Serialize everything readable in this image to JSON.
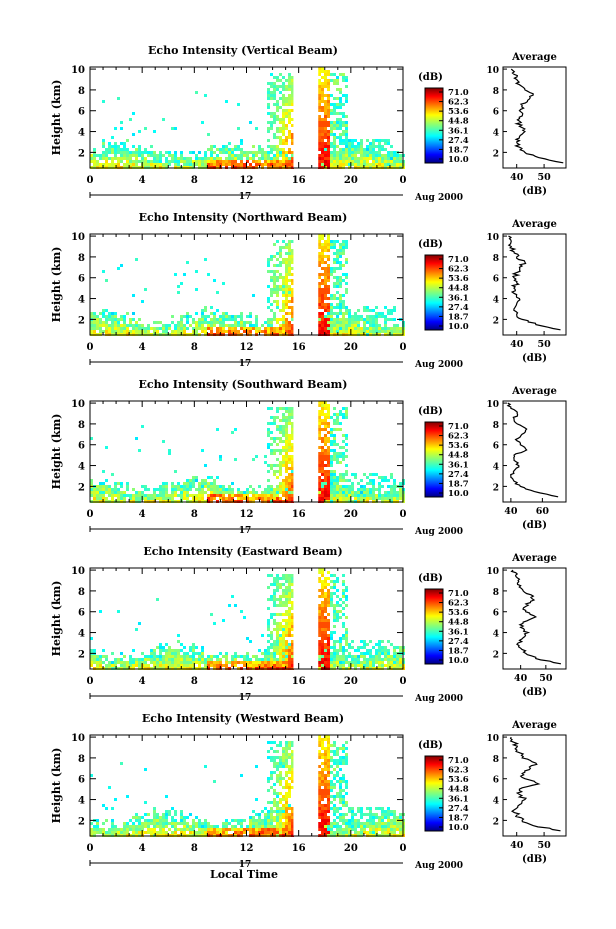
{
  "figure": {
    "date_label": "Aug 2000",
    "day_label": "17",
    "xlabel": "Local Time",
    "ylabel": "Height (km)",
    "colorbar_unit": "(dB)",
    "colorbar_ticks": [
      "71.0",
      "62.3",
      "53.6",
      "44.8",
      "36.1",
      "27.4",
      "18.7",
      "10.0"
    ],
    "average_title": "Average",
    "average_xlabel": "(dB)"
  },
  "chart_data": [
    {
      "type": "heatmap",
      "title": "Echo Intensity (Vertical Beam)",
      "xlabel": "Local Time",
      "ylabel": "Height (km)",
      "x_ticks": [
        "0",
        "4",
        "8",
        "12",
        "16",
        "20",
        "0"
      ],
      "y_ticks": [
        "2",
        "4",
        "6",
        "8",
        "10"
      ],
      "xlim": [
        0,
        24
      ],
      "ylim": [
        0.5,
        10.2
      ],
      "colorbar": {
        "unit": "(dB)",
        "range": [
          10.0,
          71.0
        ]
      },
      "gap_hours": [
        15.6,
        17.5
      ],
      "average_profile": {
        "title": "Average",
        "xlabel": "(dB)",
        "x_ticks": [
          "40",
          "50"
        ],
        "xlim": [
          35,
          58
        ],
        "heights": [
          1.0,
          1.5,
          2.0,
          2.5,
          3.0,
          3.5,
          4.0,
          4.5,
          5.0,
          5.5,
          6.0,
          6.5,
          7.0,
          7.5,
          8.0,
          8.5,
          9.0,
          9.5,
          10.0
        ],
        "values": [
          57,
          48,
          43,
          41,
          40,
          41,
          43,
          41,
          41,
          42,
          41,
          42,
          44,
          46,
          43,
          41,
          40,
          39,
          38
        ]
      }
    },
    {
      "type": "heatmap",
      "title": "Echo Intensity (Northward Beam)",
      "xlabel": "Local Time",
      "ylabel": "Height (km)",
      "x_ticks": [
        "0",
        "4",
        "8",
        "12",
        "16",
        "20",
        "0"
      ],
      "y_ticks": [
        "2",
        "4",
        "6",
        "8",
        "10"
      ],
      "xlim": [
        0,
        24
      ],
      "ylim": [
        0.5,
        10.2
      ],
      "colorbar": {
        "unit": "(dB)",
        "range": [
          10.0,
          71.0
        ]
      },
      "gap_hours": [
        15.6,
        17.5
      ],
      "average_profile": {
        "title": "Average",
        "xlabel": "(dB)",
        "x_ticks": [
          "40",
          "50"
        ],
        "xlim": [
          35,
          58
        ],
        "heights": [
          1.0,
          1.5,
          2.0,
          2.5,
          3.0,
          3.5,
          4.0,
          4.5,
          5.0,
          5.5,
          6.0,
          6.5,
          7.0,
          7.5,
          8.0,
          8.5,
          9.0,
          9.5,
          10.0
        ],
        "values": [
          56,
          47,
          42,
          40,
          39,
          40,
          41,
          39,
          39,
          40,
          39,
          40,
          41,
          43,
          40,
          39,
          38,
          38,
          37
        ]
      }
    },
    {
      "type": "heatmap",
      "title": "Echo Intensity (Southward Beam)",
      "xlabel": "Local Time",
      "ylabel": "Height (km)",
      "x_ticks": [
        "0",
        "4",
        "8",
        "12",
        "16",
        "20",
        "0"
      ],
      "y_ticks": [
        "2",
        "4",
        "6",
        "8",
        "10"
      ],
      "xlim": [
        0,
        24
      ],
      "ylim": [
        0.5,
        10.2
      ],
      "colorbar": {
        "unit": "(dB)",
        "range": [
          10.0,
          71.0
        ]
      },
      "gap_hours": [
        15.6,
        17.5
      ],
      "average_profile": {
        "title": "Average",
        "xlabel": "(dB)",
        "x_ticks": [
          "40",
          "60"
        ],
        "xlim": [
          35,
          75
        ],
        "heights": [
          1.0,
          1.5,
          2.0,
          2.5,
          3.0,
          3.5,
          4.0,
          4.5,
          5.0,
          5.5,
          6.0,
          6.5,
          7.0,
          7.5,
          8.0,
          8.5,
          9.0,
          9.5,
          10.0
        ],
        "values": [
          70,
          55,
          46,
          42,
          40,
          42,
          45,
          42,
          42,
          50,
          46,
          43,
          47,
          50,
          44,
          42,
          44,
          40,
          38
        ]
      }
    },
    {
      "type": "heatmap",
      "title": "Echo Intensity (Eastward Beam)",
      "xlabel": "Local Time",
      "ylabel": "Height (km)",
      "x_ticks": [
        "0",
        "4",
        "8",
        "12",
        "16",
        "20",
        "0"
      ],
      "y_ticks": [
        "2",
        "4",
        "6",
        "8",
        "10"
      ],
      "xlim": [
        0,
        24
      ],
      "ylim": [
        0.5,
        10.2
      ],
      "colorbar": {
        "unit": "(dB)",
        "range": [
          10.0,
          71.0
        ]
      },
      "gap_hours": [
        15.6,
        17.5
      ],
      "average_profile": {
        "title": "Average",
        "xlabel": "(dB)",
        "x_ticks": [
          "40",
          "50"
        ],
        "xlim": [
          33,
          58
        ],
        "heights": [
          1.0,
          1.5,
          2.0,
          2.5,
          3.0,
          3.5,
          4.0,
          4.5,
          5.0,
          5.5,
          6.0,
          6.5,
          7.0,
          7.5,
          8.0,
          8.5,
          9.0,
          9.5,
          10.0
        ],
        "values": [
          56,
          46,
          42,
          40,
          39,
          41,
          43,
          40,
          41,
          46,
          42,
          42,
          44,
          45,
          41,
          40,
          39,
          38,
          37
        ]
      }
    },
    {
      "type": "heatmap",
      "title": "Echo Intensity (Westward Beam)",
      "xlabel": "Local Time",
      "ylabel": "Height (km)",
      "x_ticks": [
        "0",
        "4",
        "8",
        "12",
        "16",
        "20",
        "0"
      ],
      "y_ticks": [
        "2",
        "4",
        "6",
        "8",
        "10"
      ],
      "xlim": [
        0,
        24
      ],
      "ylim": [
        0.5,
        10.2
      ],
      "colorbar": {
        "unit": "(dB)",
        "range": [
          10.0,
          71.0
        ]
      },
      "gap_hours": [
        15.6,
        17.5
      ],
      "average_profile": {
        "title": "Average",
        "xlabel": "(dB)",
        "x_ticks": [
          "40",
          "50"
        ],
        "xlim": [
          35,
          58
        ],
        "heights": [
          1.0,
          1.5,
          2.0,
          2.5,
          3.0,
          3.5,
          4.0,
          4.5,
          5.0,
          5.5,
          6.0,
          6.5,
          7.0,
          7.5,
          8.0,
          8.5,
          9.0,
          9.5,
          10.0
        ],
        "values": [
          56,
          46,
          42,
          40,
          39,
          41,
          43,
          41,
          41,
          48,
          43,
          42,
          45,
          47,
          42,
          41,
          40,
          39,
          38
        ]
      }
    }
  ]
}
